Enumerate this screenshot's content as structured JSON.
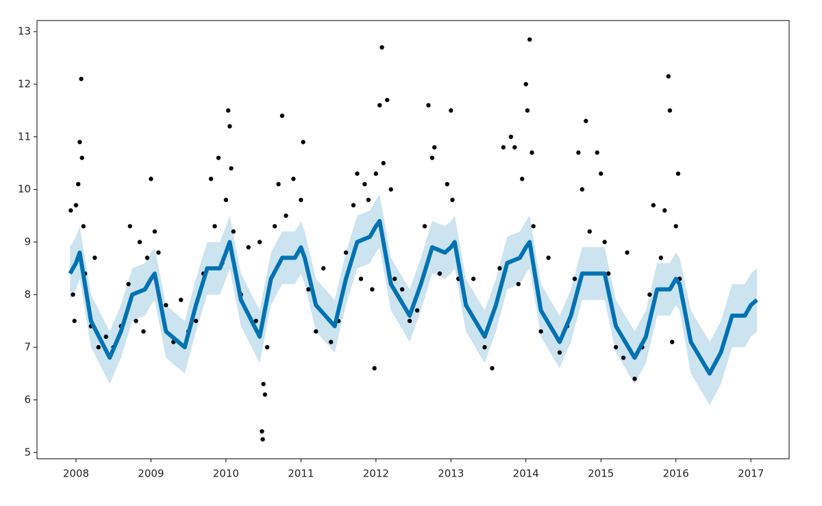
{
  "chart_data": {
    "type": "forecast",
    "xlim": [
      2007.48,
      2017.51
    ],
    "ylim": [
      4.88,
      13.21
    ],
    "xticks": [
      2008,
      2009,
      2010,
      2011,
      2012,
      2013,
      2014,
      2015,
      2016,
      2017
    ],
    "yticks": [
      5,
      6,
      7,
      8,
      9,
      10,
      11,
      12,
      13
    ],
    "forecast": {
      "color": "#0072B2",
      "x": [
        2007.92,
        2008.0,
        2008.05,
        2008.2,
        2008.45,
        2008.6,
        2008.75,
        2008.92,
        2009.0,
        2009.05,
        2009.2,
        2009.45,
        2009.6,
        2009.75,
        2009.92,
        2010.0,
        2010.05,
        2010.2,
        2010.45,
        2010.6,
        2010.75,
        2010.92,
        2011.0,
        2011.05,
        2011.2,
        2011.45,
        2011.6,
        2011.75,
        2011.92,
        2012.0,
        2012.05,
        2012.2,
        2012.45,
        2012.6,
        2012.75,
        2012.92,
        2013.0,
        2013.05,
        2013.2,
        2013.45,
        2013.6,
        2013.75,
        2013.92,
        2014.0,
        2014.05,
        2014.2,
        2014.45,
        2014.6,
        2014.75,
        2014.92,
        2015.0,
        2015.05,
        2015.2,
        2015.45,
        2015.6,
        2015.75,
        2015.92,
        2016.0,
        2016.05,
        2016.2,
        2016.45,
        2016.6,
        2016.75,
        2016.92,
        2017.0,
        2017.08
      ],
      "values": [
        8.4,
        8.6,
        8.8,
        7.5,
        6.8,
        7.3,
        8.0,
        8.1,
        8.3,
        8.4,
        7.3,
        7.0,
        7.8,
        8.5,
        8.5,
        8.8,
        9.0,
        7.9,
        7.2,
        8.3,
        8.7,
        8.7,
        8.9,
        8.7,
        7.8,
        7.4,
        8.3,
        9.0,
        9.1,
        9.3,
        9.4,
        8.2,
        7.6,
        8.2,
        8.9,
        8.8,
        8.9,
        9.0,
        7.8,
        7.2,
        7.8,
        8.6,
        8.7,
        8.9,
        9.0,
        7.7,
        7.1,
        7.6,
        8.4,
        8.4,
        8.4,
        8.4,
        7.4,
        6.8,
        7.2,
        8.1,
        8.1,
        8.3,
        8.2,
        7.1,
        6.5,
        6.9,
        7.6,
        7.6,
        7.8,
        7.9
      ],
      "lower": [
        7.9,
        8.1,
        8.3,
        7.0,
        6.3,
        6.8,
        7.5,
        7.6,
        7.8,
        7.9,
        6.8,
        6.5,
        7.3,
        8.0,
        8.0,
        8.3,
        8.5,
        7.4,
        6.7,
        7.8,
        8.2,
        8.2,
        8.4,
        8.2,
        7.3,
        6.9,
        7.8,
        8.5,
        8.6,
        8.8,
        8.9,
        7.7,
        7.1,
        7.7,
        8.4,
        8.3,
        8.4,
        8.5,
        7.3,
        6.7,
        7.3,
        8.1,
        8.2,
        8.4,
        8.5,
        7.2,
        6.6,
        7.1,
        7.9,
        7.9,
        7.9,
        7.9,
        6.9,
        6.3,
        6.7,
        7.6,
        7.6,
        7.8,
        7.7,
        6.5,
        5.9,
        6.3,
        7.0,
        7.0,
        7.2,
        7.3
      ],
      "upper": [
        8.9,
        9.1,
        9.3,
        8.0,
        7.3,
        7.8,
        8.5,
        8.6,
        8.8,
        8.9,
        7.8,
        7.5,
        8.3,
        9.0,
        9.0,
        9.3,
        9.5,
        8.4,
        7.7,
        8.8,
        9.2,
        9.2,
        9.4,
        9.2,
        8.3,
        7.9,
        8.8,
        9.5,
        9.6,
        9.8,
        9.9,
        8.7,
        8.1,
        8.7,
        9.4,
        9.3,
        9.4,
        9.5,
        8.3,
        7.7,
        8.3,
        9.1,
        9.2,
        9.4,
        9.5,
        8.2,
        7.6,
        8.1,
        8.9,
        8.9,
        8.9,
        8.9,
        7.9,
        7.3,
        7.7,
        8.6,
        8.6,
        8.8,
        8.7,
        7.7,
        7.1,
        7.5,
        8.2,
        8.2,
        8.4,
        8.5
      ]
    },
    "observed": {
      "color": "#000000",
      "x": [
        2007.93,
        2007.96,
        2007.98,
        2008.0,
        2008.03,
        2008.05,
        2008.07,
        2008.08,
        2008.1,
        2008.12,
        2008.2,
        2008.25,
        2008.3,
        2008.4,
        2008.5,
        2008.6,
        2008.7,
        2008.72,
        2008.8,
        2008.85,
        2008.9,
        2008.95,
        2009.0,
        2009.05,
        2009.1,
        2009.2,
        2009.3,
        2009.4,
        2009.5,
        2009.6,
        2009.7,
        2009.8,
        2009.85,
        2009.9,
        2009.95,
        2010.0,
        2010.03,
        2010.05,
        2010.07,
        2010.1,
        2010.2,
        2010.3,
        2010.4,
        2010.45,
        2010.48,
        2010.49,
        2010.5,
        2010.52,
        2010.55,
        2010.65,
        2010.7,
        2010.75,
        2010.8,
        2010.9,
        2011.0,
        2011.03,
        2011.1,
        2011.2,
        2011.3,
        2011.4,
        2011.5,
        2011.6,
        2011.7,
        2011.75,
        2011.8,
        2011.85,
        2011.9,
        2011.95,
        2011.98,
        2012.0,
        2012.05,
        2012.08,
        2012.1,
        2012.15,
        2012.2,
        2012.25,
        2012.35,
        2012.45,
        2012.55,
        2012.65,
        2012.7,
        2012.75,
        2012.78,
        2012.85,
        2012.95,
        2013.0,
        2013.02,
        2013.1,
        2013.2,
        2013.3,
        2013.45,
        2013.55,
        2013.65,
        2013.7,
        2013.8,
        2013.85,
        2013.9,
        2013.95,
        2014.0,
        2014.02,
        2014.05,
        2014.08,
        2014.1,
        2014.2,
        2014.3,
        2014.45,
        2014.55,
        2014.65,
        2014.7,
        2014.75,
        2014.8,
        2014.85,
        2014.95,
        2015.0,
        2015.05,
        2015.1,
        2015.2,
        2015.3,
        2015.35,
        2015.45,
        2015.55,
        2015.65,
        2015.7,
        2015.8,
        2015.85,
        2015.9,
        2015.92,
        2015.95,
        2016.0,
        2016.03,
        2016.05
      ],
      "values": [
        9.6,
        8.0,
        7.5,
        9.7,
        10.1,
        10.9,
        12.1,
        10.6,
        9.3,
        8.4,
        7.4,
        8.7,
        7.0,
        7.2,
        7.0,
        7.4,
        8.2,
        9.3,
        7.5,
        9.0,
        7.3,
        8.7,
        10.2,
        9.2,
        8.8,
        7.8,
        7.1,
        7.9,
        7.3,
        7.5,
        8.4,
        10.2,
        9.3,
        10.6,
        8.6,
        9.8,
        11.5,
        11.2,
        10.4,
        9.2,
        8.0,
        8.9,
        7.5,
        9.0,
        5.4,
        5.25,
        6.3,
        6.1,
        7.0,
        9.3,
        10.1,
        11.4,
        9.5,
        10.2,
        9.8,
        10.9,
        8.1,
        7.3,
        8.5,
        7.1,
        7.5,
        8.8,
        9.7,
        10.3,
        8.3,
        10.1,
        9.8,
        8.1,
        6.6,
        10.3,
        11.6,
        12.7,
        10.5,
        11.7,
        10.0,
        8.3,
        8.1,
        7.5,
        7.7,
        9.3,
        11.6,
        10.6,
        10.8,
        8.4,
        10.1,
        11.5,
        9.8,
        8.3,
        7.8,
        8.3,
        7.0,
        6.6,
        8.5,
        10.8,
        11.0,
        10.8,
        8.2,
        10.2,
        12.0,
        11.5,
        12.85,
        10.7,
        9.3,
        7.3,
        8.7,
        6.9,
        7.4,
        8.3,
        10.7,
        10.0,
        11.3,
        9.2,
        10.7,
        10.3,
        9.0,
        8.4,
        7.0,
        6.8,
        8.8,
        6.4,
        7.0,
        8.0,
        9.7,
        8.7,
        9.6,
        12.15,
        11.5,
        7.1,
        9.3,
        10.3,
        8.3
      ]
    }
  }
}
